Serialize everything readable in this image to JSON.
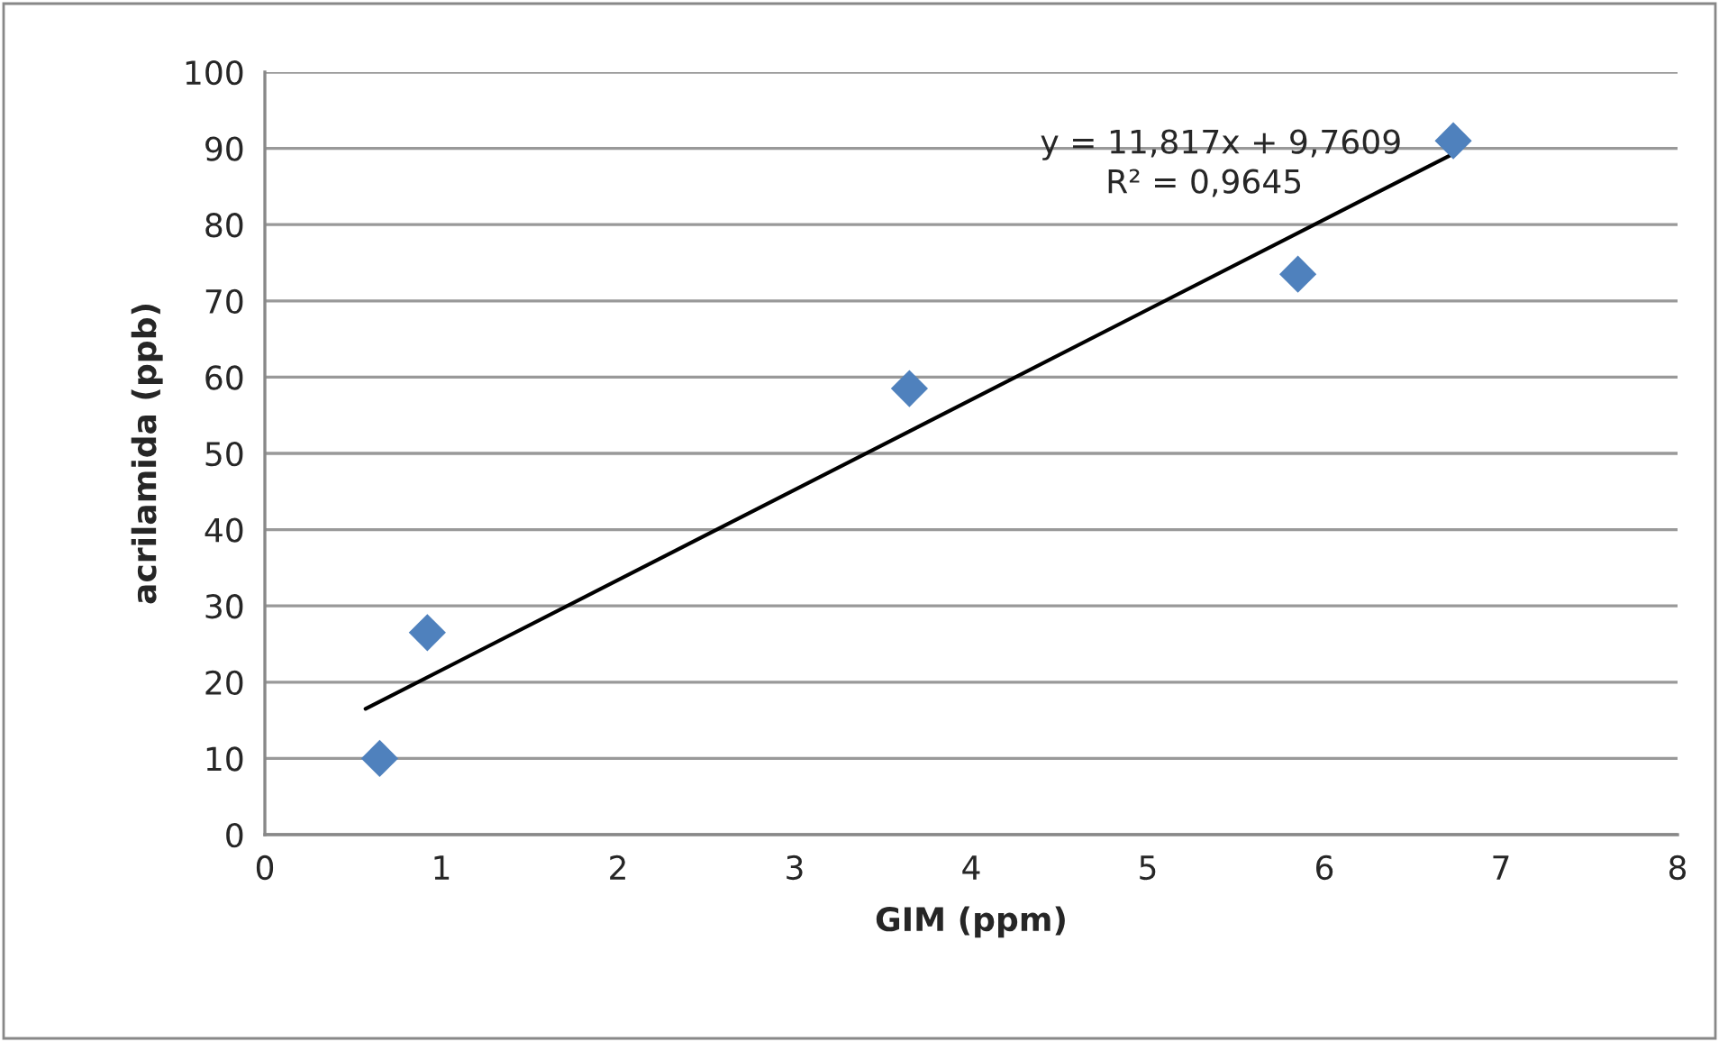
{
  "chart_data": {
    "type": "scatter",
    "xlabel": "GIM (ppm)",
    "ylabel": "acrilamida (ppb)",
    "xlim": [
      0,
      8
    ],
    "xticks": [
      0,
      1,
      2,
      3,
      4,
      5,
      6,
      7,
      8
    ],
    "ylim": [
      0,
      100
    ],
    "yticks": [
      0,
      10,
      20,
      30,
      40,
      50,
      60,
      70,
      80,
      90,
      100
    ],
    "grid": "y",
    "marker": "diamond",
    "legend": false,
    "series": [
      {
        "color": "#4f81bd",
        "x": [
          0.65,
          0.92,
          3.65,
          5.85,
          6.73
        ],
        "values": [
          10,
          26.5,
          58.5,
          73.5,
          91
        ]
      },
      {
        "type": "line",
        "color": "#000000",
        "x": [
          0.57,
          6.73
        ],
        "values": [
          16.5,
          89.3
        ],
        "marker": "none"
      }
    ],
    "annotations": [
      "y = 11,817x + 9,7609",
      "R² = 0,9645"
    ]
  }
}
